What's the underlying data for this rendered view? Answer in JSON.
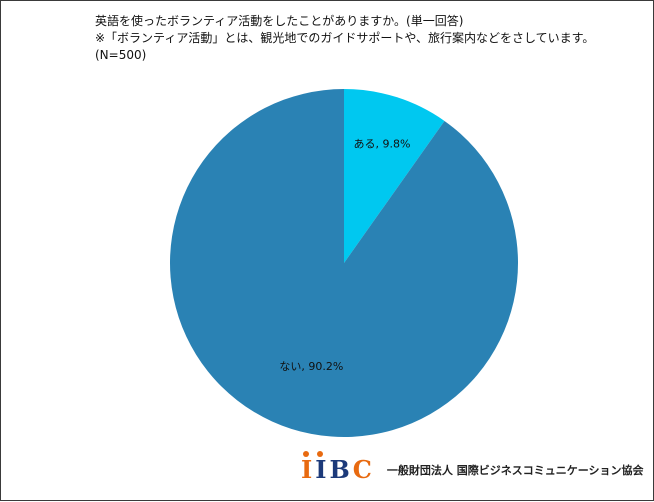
{
  "chart_data": {
    "type": "pie",
    "title_lines": [
      "英語を使ったボランティア活動をしたことがありますか。(単一回答)",
      "※「ボランティア活動」とは、観光地でのガイドサポートや、旅行案内などをさしています。",
      "(N=500)"
    ],
    "slices": [
      {
        "label": "ある",
        "value": 9.8,
        "display": "ある, 9.8%",
        "color": "#00c8f0"
      },
      {
        "label": "ない",
        "value": 90.2,
        "display": "ない, 90.2%",
        "color": "#2a82b4"
      }
    ],
    "start_angle": "12 o'clock",
    "direction": "clockwise"
  },
  "footer": {
    "logo_text": "IIBC",
    "organization": "一般財団法人 国際ビジネスコミュニケーション協会"
  }
}
